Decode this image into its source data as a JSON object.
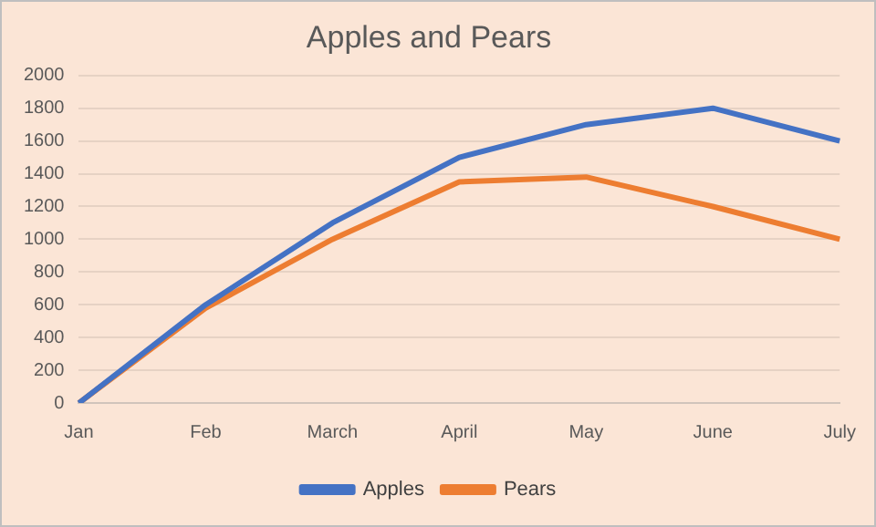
{
  "chart_data": {
    "type": "line",
    "title": "Apples and Pears",
    "categories": [
      "Jan",
      "Feb",
      "March",
      "April",
      "May",
      "June",
      "July"
    ],
    "series": [
      {
        "name": "Apples",
        "color": "#4472c4",
        "values": [
          0,
          600,
          1100,
          1500,
          1700,
          1800,
          1600
        ]
      },
      {
        "name": "Pears",
        "color": "#ed7d31",
        "values": [
          0,
          580,
          1000,
          1350,
          1380,
          1200,
          1000
        ]
      }
    ],
    "ylim": [
      0,
      2000
    ],
    "yticks": [
      0,
      200,
      400,
      600,
      800,
      1000,
      1200,
      1400,
      1600,
      1800,
      2000
    ],
    "grid": "y",
    "legend": "bottom",
    "marker": "none",
    "line_style": "solid"
  }
}
